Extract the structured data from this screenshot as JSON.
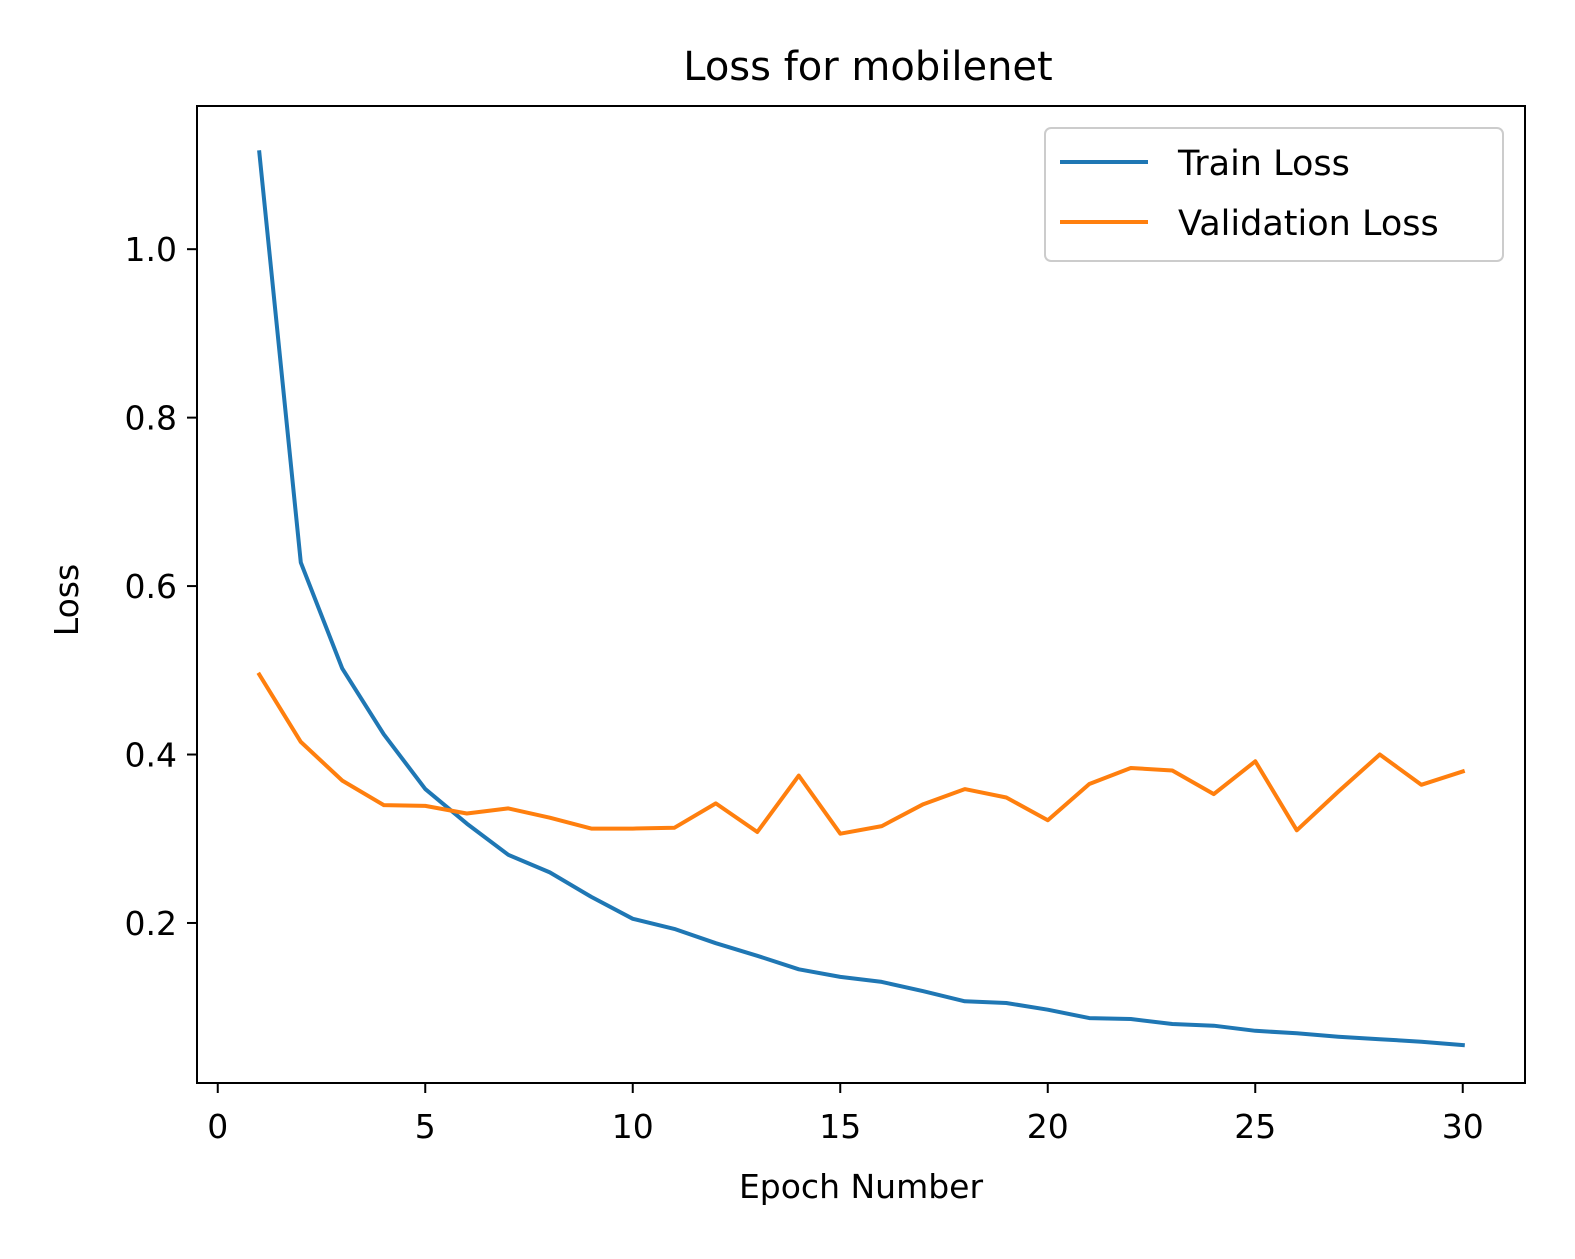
{
  "chart_data": {
    "type": "line",
    "title": "Loss for mobilenet",
    "xlabel": "Epoch Number",
    "ylabel": "Loss",
    "xlim": [
      -0.5,
      31.5
    ],
    "ylim": [
      0.01,
      1.17
    ],
    "xticks": [
      0,
      5,
      10,
      15,
      20,
      25,
      30
    ],
    "xtick_labels": [
      "0",
      "5",
      "10",
      "15",
      "20",
      "25",
      "30"
    ],
    "yticks": [
      0.2,
      0.4,
      0.6,
      0.8,
      1.0
    ],
    "ytick_labels": [
      "0.2",
      "0.4",
      "0.6",
      "0.8",
      "1.0"
    ],
    "grid": false,
    "legend_position": "top-right",
    "x": [
      1,
      2,
      3,
      4,
      5,
      6,
      7,
      8,
      9,
      10,
      11,
      12,
      13,
      14,
      15,
      16,
      17,
      18,
      19,
      20,
      21,
      22,
      23,
      24,
      25,
      26,
      27,
      28,
      29,
      30
    ],
    "series": [
      {
        "name": "Train Loss",
        "color": "#1f77b4",
        "values": [
          1.115,
          0.628,
          0.502,
          0.424,
          0.359,
          0.318,
          0.281,
          0.26,
          0.231,
          0.205,
          0.193,
          0.176,
          0.161,
          0.145,
          0.136,
          0.13,
          0.119,
          0.107,
          0.105,
          0.097,
          0.087,
          0.086,
          0.08,
          0.078,
          0.072,
          0.069,
          0.065,
          0.062,
          0.059,
          0.055
        ]
      },
      {
        "name": "Validation Loss",
        "color": "#ff7f0e",
        "values": [
          0.495,
          0.415,
          0.369,
          0.34,
          0.339,
          0.33,
          0.336,
          0.325,
          0.312,
          0.312,
          0.313,
          0.342,
          0.308,
          0.375,
          0.306,
          0.315,
          0.341,
          0.359,
          0.349,
          0.322,
          0.365,
          0.384,
          0.381,
          0.353,
          0.392,
          0.31,
          0.356,
          0.4,
          0.364,
          0.38
        ]
      }
    ]
  }
}
